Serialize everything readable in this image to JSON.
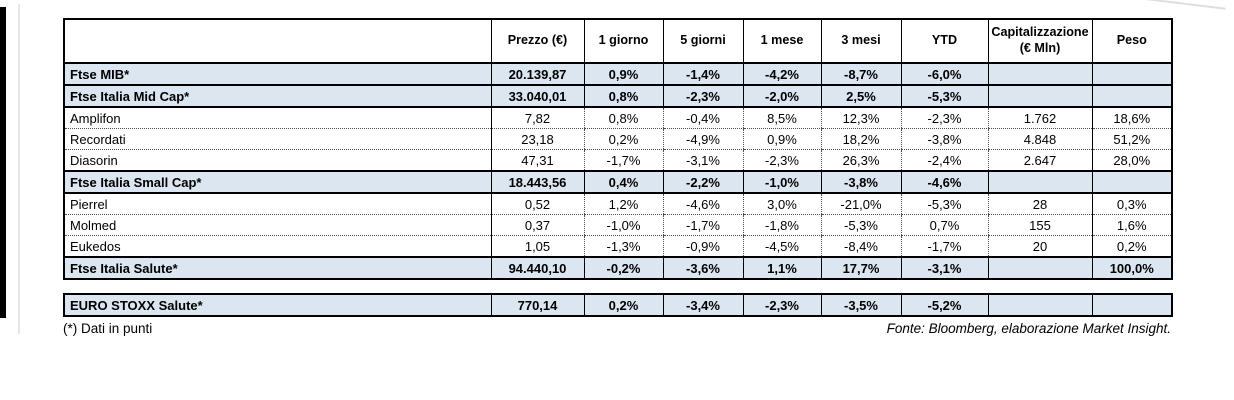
{
  "chart_data": {
    "type": "table",
    "title": "",
    "columns": [
      "",
      "Prezzo (€)",
      "1 giorno",
      "5 giorni",
      "1 mese",
      "3 mesi",
      "YTD",
      "Capitalizzazione\n(€ Mln)",
      "Peso"
    ],
    "rows": [
      {
        "name": "Ftse MIB*",
        "style": "index",
        "values": [
          "20.139,87",
          "0,9%",
          "-1,4%",
          "-4,2%",
          "-8,7%",
          "-6,0%",
          "",
          ""
        ]
      },
      {
        "name": "Ftse Italia Mid Cap*",
        "style": "index",
        "values": [
          "33.040,01",
          "0,8%",
          "-2,3%",
          "-2,0%",
          "2,5%",
          "-5,3%",
          "",
          ""
        ]
      },
      {
        "name": "Amplifon",
        "style": "stock",
        "values": [
          "7,82",
          "0,8%",
          "-0,4%",
          "8,5%",
          "12,3%",
          "-2,3%",
          "1.762",
          "18,6%"
        ]
      },
      {
        "name": "Recordati",
        "style": "stock",
        "values": [
          "23,18",
          "0,2%",
          "-4,9%",
          "0,9%",
          "18,2%",
          "-3,8%",
          "4.848",
          "51,2%"
        ]
      },
      {
        "name": "Diasorin",
        "style": "stock",
        "values": [
          "47,31",
          "-1,7%",
          "-3,1%",
          "-2,3%",
          "26,3%",
          "-2,4%",
          "2.647",
          "28,0%"
        ]
      },
      {
        "name": "Ftse Italia Small Cap*",
        "style": "index",
        "values": [
          "18.443,56",
          "0,4%",
          "-2,2%",
          "-1,0%",
          "-3,8%",
          "-4,6%",
          "",
          ""
        ]
      },
      {
        "name": "Pierrel",
        "style": "stock",
        "values": [
          "0,52",
          "1,2%",
          "-4,6%",
          "3,0%",
          "-21,0%",
          "-5,3%",
          "28",
          "0,3%"
        ]
      },
      {
        "name": "Molmed",
        "style": "stock",
        "values": [
          "0,37",
          "-1,0%",
          "-1,7%",
          "-1,8%",
          "-5,3%",
          "0,7%",
          "155",
          "1,6%"
        ]
      },
      {
        "name": "Eukedos",
        "style": "stock",
        "values": [
          "1,05",
          "-1,3%",
          "-0,9%",
          "-4,5%",
          "-8,4%",
          "-1,7%",
          "20",
          "0,2%"
        ]
      },
      {
        "name": "Ftse Italia Salute*",
        "style": "index",
        "values": [
          "94.440,10",
          "-0,2%",
          "-3,6%",
          "1,1%",
          "17,7%",
          "-3,1%",
          "",
          "100,0%"
        ]
      }
    ],
    "separate_rows": [
      {
        "name": "EURO STOXX Salute*",
        "style": "index",
        "values": [
          "770,14",
          "0,2%",
          "-3,4%",
          "-2,3%",
          "-3,5%",
          "-5,2%",
          "",
          ""
        ]
      }
    ],
    "legend_position": "none",
    "grid": "table-borders"
  },
  "footer": {
    "footnote": "(*) Dati in punti",
    "source": "Fonte: Bloomberg, elaborazione Market Insight."
  },
  "colors": {
    "row_highlight": "#dce6f1",
    "border": "#000000",
    "dotted_separator": "#4d4d4d",
    "background": "#ffffff"
  }
}
